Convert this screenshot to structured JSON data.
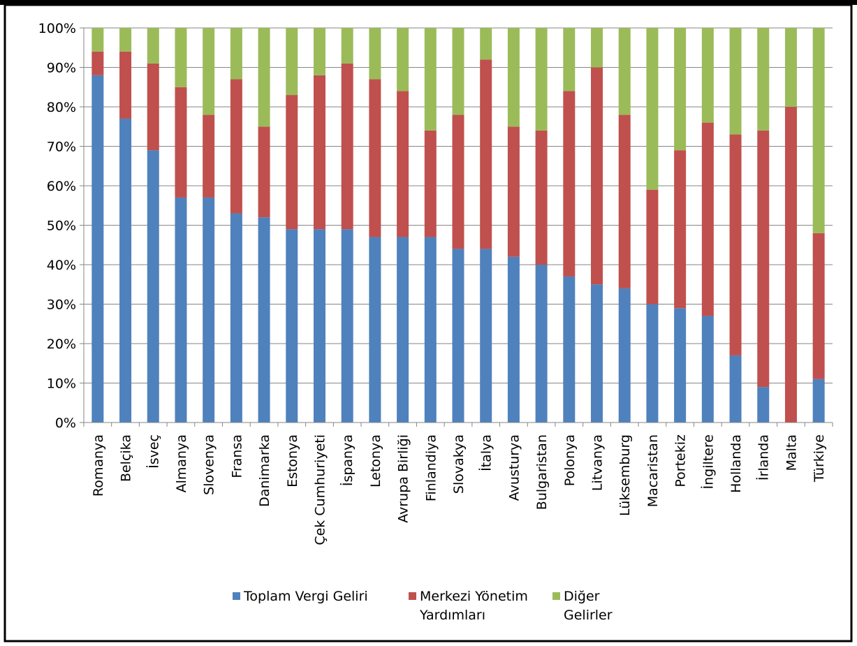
{
  "chart_data": {
    "type": "bar",
    "stacked": "percent",
    "title": "",
    "xlabel": "",
    "ylabel": "",
    "ylim": [
      0,
      100
    ],
    "yticks": [
      "0%",
      "10%",
      "20%",
      "30%",
      "40%",
      "50%",
      "60%",
      "70%",
      "80%",
      "90%",
      "100%"
    ],
    "grid": true,
    "legend_position": "bottom",
    "categories": [
      "Romanya",
      "Belçika",
      "İsveç",
      "Almanya",
      "Slovenya",
      "Fransa",
      "Danimarka",
      "Estonya",
      "Çek Cumhuriyeti",
      "İspanya",
      "Letonya",
      "Avrupa Birliği",
      "Finlandiya",
      "Slovakya",
      "İtalya",
      "Avusturya",
      "Bulgaristan",
      "Polonya",
      "Litvanya",
      "Lüksemburg",
      "Macaristan",
      "Portekiz",
      "İngiltere",
      "Hollanda",
      "İrlanda",
      "Malta",
      "Türkiye"
    ],
    "series": [
      {
        "name": "Toplam Vergi Geliri",
        "color": "#4F81BD",
        "legend_lines": [
          "Toplam Vergi Geliri"
        ],
        "values": [
          88,
          77,
          69,
          57,
          57,
          53,
          52,
          49,
          49,
          49,
          47,
          47,
          47,
          44,
          44,
          42,
          40,
          37,
          35,
          34,
          30,
          29,
          27,
          17,
          9,
          0,
          11
        ]
      },
      {
        "name": "Merkezi Yönetim Yardımları",
        "color": "#C0504D",
        "legend_lines": [
          "Merkezi Yönetim",
          "Yardımları"
        ],
        "values": [
          6,
          17,
          22,
          28,
          21,
          34,
          23,
          34,
          39,
          42,
          40,
          37,
          27,
          34,
          48,
          33,
          34,
          47,
          55,
          44,
          29,
          40,
          49,
          56,
          65,
          80,
          37
        ]
      },
      {
        "name": "Diğer Gelirler",
        "color": "#9BBB59",
        "legend_lines": [
          "Diğer",
          "Gelirler"
        ],
        "values": [
          6,
          6,
          9,
          15,
          22,
          13,
          25,
          17,
          12,
          9,
          13,
          16,
          26,
          22,
          8,
          25,
          26,
          16,
          10,
          22,
          41,
          31,
          24,
          27,
          26,
          20,
          52
        ]
      }
    ]
  }
}
